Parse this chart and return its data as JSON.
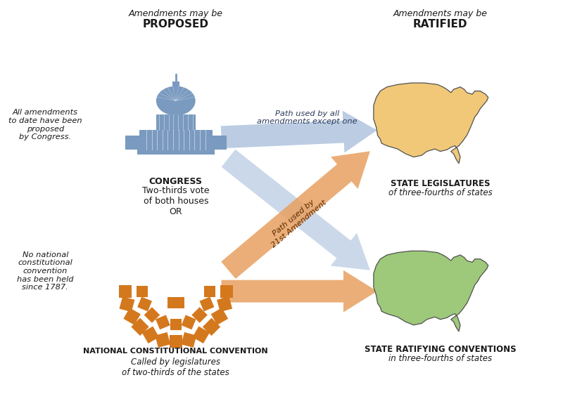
{
  "background_color": "#ffffff",
  "blue_color": "#8ba8cc",
  "blue_light": "#b0c4de",
  "orange_color": "#d4781e",
  "orange_arrow": "#e8a060",
  "capitol_color": "#7a9abf",
  "us_map_top_color": "#f0c878",
  "us_map_bottom_color": "#9ec87a",
  "convention_icon_color": "#d4781e",
  "text_color": "#1a1a1a",
  "title_proposed_line1": "Amendments may be",
  "title_proposed_line2": "PROPOSED",
  "title_ratified_line1": "Amendments may be",
  "title_ratified_line2": "RATIFIED",
  "congress_bold": "CONGRESS",
  "congress_sub": "Two-thirds vote\nof both houses\nOR",
  "convention_bold": "NATIONAL CONSTITUTIONAL CONVENTION",
  "convention_sub": "Called by legislatures\nof two-thirds of the states",
  "state_leg_bold": "STATE LEGISLATURES",
  "state_leg_sub": "of three-fourths of states",
  "state_conv_bold": "STATE RATIFYING CONVENTIONS",
  "state_conv_sub": "in three-fourths of states",
  "left_note1": "All amendments\nto date have been\nproposed\nby Congress.",
  "left_note2": "No national\nconstitutional\nconvention\nhas been held\nsince 1787.",
  "path1_label": "Path used by all\namendments except one",
  "path2_label": "Path used by\n21st Amendment"
}
